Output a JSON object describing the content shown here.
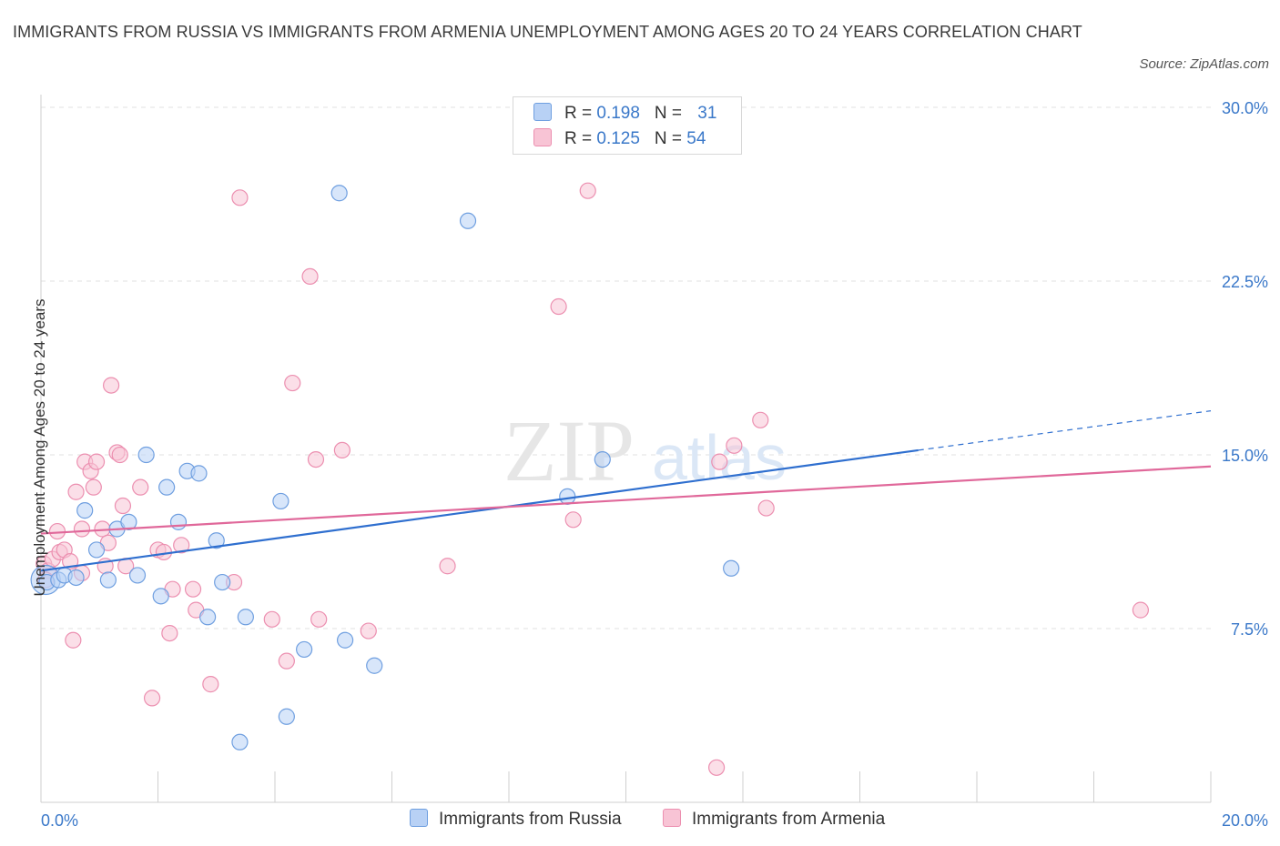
{
  "title": "IMMIGRANTS FROM RUSSIA VS IMMIGRANTS FROM ARMENIA UNEMPLOYMENT AMONG AGES 20 TO 24 YEARS CORRELATION CHART",
  "source": "Source: ZipAtlas.com",
  "watermark": {
    "zip": "ZIP",
    "atlas": "atlas"
  },
  "colors": {
    "russia_fill": "#b8d1f5",
    "russia_stroke": "#6f9fe0",
    "russia_line": "#2f6fcf",
    "armenia_fill": "#f8c4d5",
    "armenia_stroke": "#ec8fb0",
    "armenia_line": "#e0689a",
    "axis_text": "#3a78c9",
    "grid": "#e2e2e2"
  },
  "legend": {
    "russia": {
      "r_label": "R = ",
      "r_value": "0.198",
      "n_label": "N = ",
      "n_value": "31"
    },
    "armenia": {
      "r_label": "R = ",
      "r_value": "0.125",
      "n_label": "N = ",
      "n_value": "54"
    }
  },
  "chart_data": {
    "type": "scatter",
    "title": "IMMIGRANTS FROM RUSSIA VS IMMIGRANTS FROM ARMENIA UNEMPLOYMENT AMONG AGES 20 TO 24 YEARS CORRELATION CHART",
    "xlabel": "",
    "ylabel": "Unemployment Among Ages 20 to 24 years",
    "xlim": [
      0,
      20
    ],
    "ylim": [
      0,
      30
    ],
    "x_tick_labels": [
      "0.0%",
      "20.0%"
    ],
    "y_ticks": [
      7.5,
      15.0,
      22.5,
      30.0
    ],
    "y_tick_labels": [
      "7.5%",
      "15.0%",
      "22.5%",
      "30.0%"
    ],
    "grid": true,
    "legend_position": "top-center",
    "series": [
      {
        "name": "Immigrants from Russia",
        "r": 0.198,
        "n": 31,
        "trend": {
          "x0": 0,
          "y0": 10.0,
          "x1": 15.0,
          "y1": 15.2,
          "dashed_to_x": 20.0,
          "dashed_to_y": 16.9
        },
        "points": [
          [
            0.1,
            9.5
          ],
          [
            0.3,
            9.6
          ],
          [
            0.4,
            9.8
          ],
          [
            0.6,
            9.7
          ],
          [
            0.75,
            12.6
          ],
          [
            0.95,
            10.9
          ],
          [
            1.15,
            9.6
          ],
          [
            1.3,
            11.8
          ],
          [
            1.5,
            12.1
          ],
          [
            1.65,
            9.8
          ],
          [
            1.8,
            15.0
          ],
          [
            2.05,
            8.9
          ],
          [
            2.15,
            13.6
          ],
          [
            2.35,
            12.1
          ],
          [
            2.5,
            14.3
          ],
          [
            2.7,
            14.2
          ],
          [
            2.85,
            8.0
          ],
          [
            3.0,
            11.3
          ],
          [
            3.1,
            9.5
          ],
          [
            3.5,
            8.0
          ],
          [
            4.1,
            13.0
          ],
          [
            4.2,
            3.7
          ],
          [
            4.5,
            6.6
          ],
          [
            5.1,
            26.3
          ],
          [
            5.2,
            7.0
          ],
          [
            5.7,
            5.9
          ],
          [
            3.4,
            2.6
          ],
          [
            7.3,
            25.1
          ],
          [
            9.0,
            13.2
          ],
          [
            9.6,
            14.8
          ],
          [
            11.8,
            10.1
          ]
        ]
      },
      {
        "name": "Immigrants from Armenia",
        "r": 0.125,
        "n": 54,
        "trend": {
          "x0": 0,
          "y0": 11.6,
          "x1": 20.0,
          "y1": 14.5
        },
        "points": [
          [
            0.05,
            10.3
          ],
          [
            0.12,
            10.0
          ],
          [
            0.2,
            10.5
          ],
          [
            0.28,
            11.7
          ],
          [
            0.32,
            10.8
          ],
          [
            0.4,
            10.9
          ],
          [
            0.5,
            10.4
          ],
          [
            0.55,
            7.0
          ],
          [
            0.6,
            13.4
          ],
          [
            0.7,
            9.9
          ],
          [
            0.7,
            11.8
          ],
          [
            0.75,
            14.7
          ],
          [
            0.85,
            14.3
          ],
          [
            0.9,
            13.6
          ],
          [
            0.95,
            14.7
          ],
          [
            1.05,
            11.8
          ],
          [
            1.1,
            10.2
          ],
          [
            1.15,
            11.2
          ],
          [
            1.2,
            18.0
          ],
          [
            1.3,
            15.1
          ],
          [
            1.35,
            15.0
          ],
          [
            1.4,
            12.8
          ],
          [
            1.45,
            10.2
          ],
          [
            1.7,
            13.6
          ],
          [
            1.9,
            4.5
          ],
          [
            2.0,
            10.9
          ],
          [
            2.1,
            10.8
          ],
          [
            2.2,
            7.3
          ],
          [
            2.25,
            9.2
          ],
          [
            2.4,
            11.1
          ],
          [
            2.6,
            9.2
          ],
          [
            2.65,
            8.3
          ],
          [
            2.9,
            5.1
          ],
          [
            3.4,
            26.1
          ],
          [
            3.3,
            9.5
          ],
          [
            3.95,
            7.9
          ],
          [
            4.2,
            6.1
          ],
          [
            4.3,
            18.1
          ],
          [
            4.6,
            22.7
          ],
          [
            4.7,
            14.8
          ],
          [
            4.75,
            7.9
          ],
          [
            5.15,
            15.2
          ],
          [
            5.6,
            7.4
          ],
          [
            6.95,
            10.2
          ],
          [
            8.85,
            21.4
          ],
          [
            9.1,
            12.2
          ],
          [
            9.35,
            26.4
          ],
          [
            11.55,
            1.5
          ],
          [
            11.6,
            14.7
          ],
          [
            11.85,
            15.4
          ],
          [
            12.3,
            16.5
          ],
          [
            12.4,
            12.7
          ],
          [
            18.8,
            8.3
          ],
          [
            0.08,
            9.6
          ]
        ]
      }
    ]
  },
  "bottom_legend": {
    "russia": "Immigrants from Russia",
    "armenia": "Immigrants from Armenia"
  }
}
